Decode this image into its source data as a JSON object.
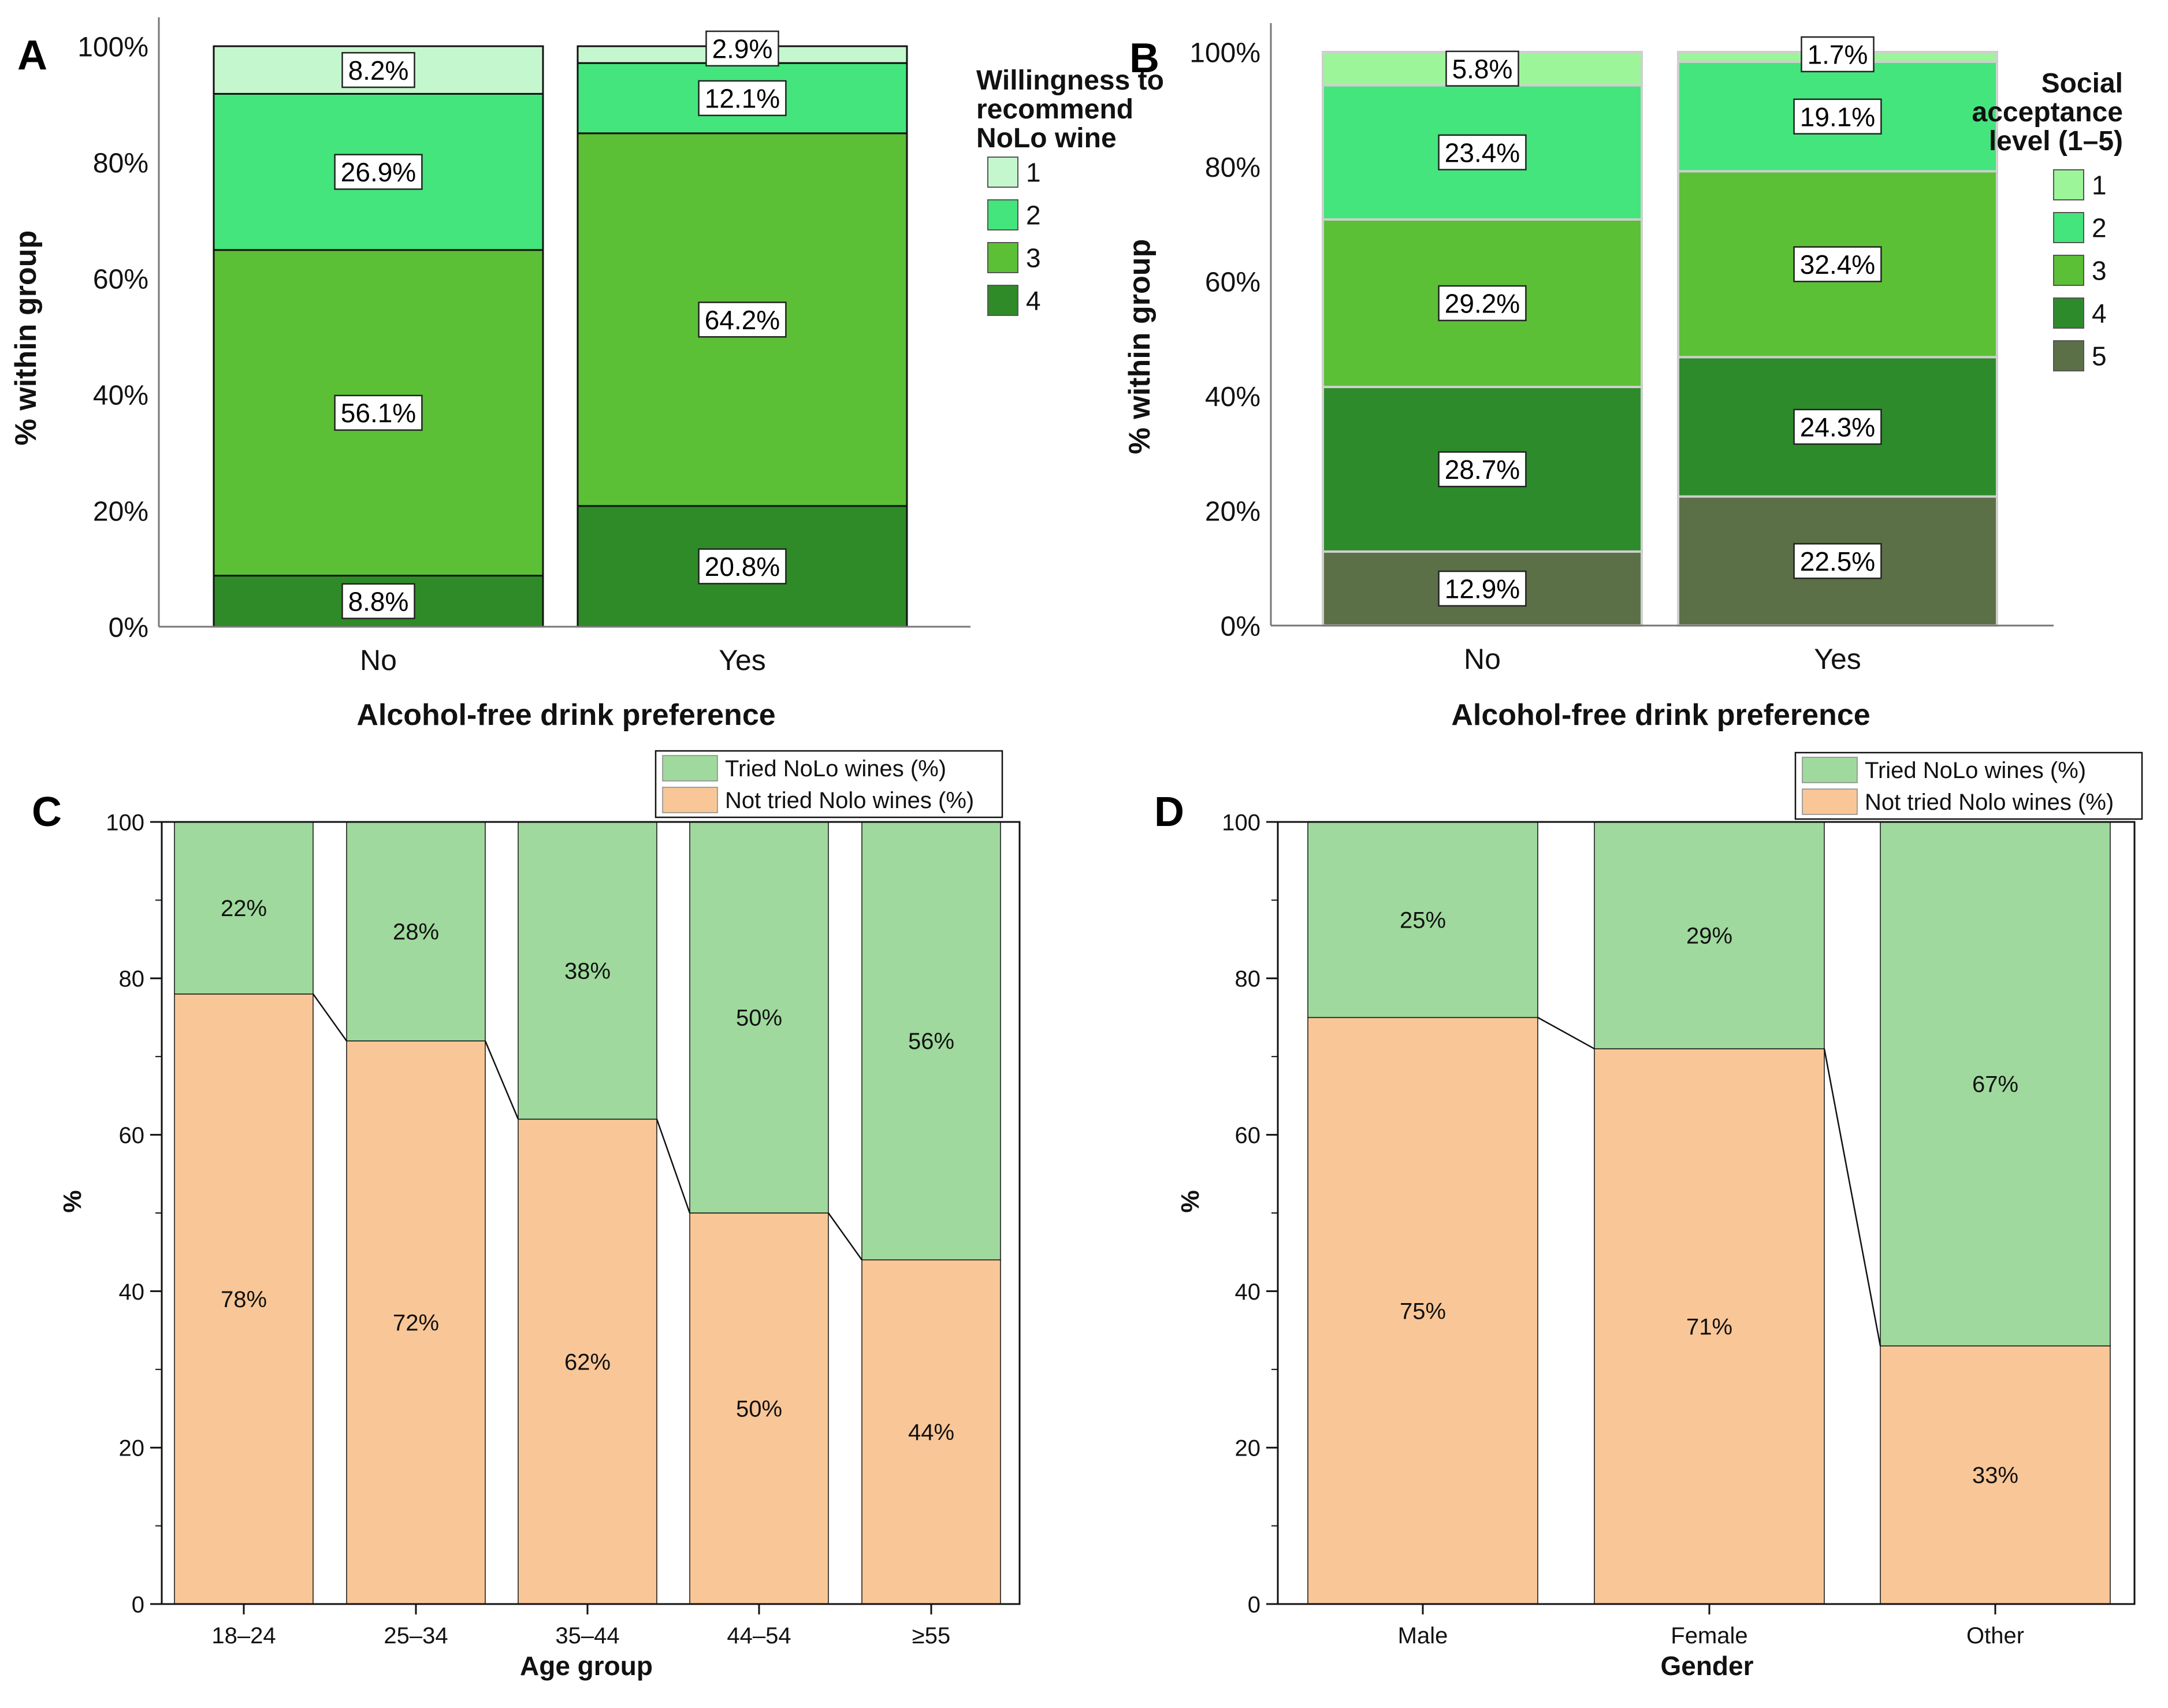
{
  "chart_data": [
    {
      "panel": "A",
      "type": "bar",
      "stacked": true,
      "categories": [
        "No",
        "Yes"
      ],
      "ylabel": "% within group",
      "xlabel": "Alcohol-free drink preference",
      "ylim": [
        0,
        100
      ],
      "yticks": [
        "0%",
        "20%",
        "40%",
        "60%",
        "80%",
        "100%"
      ],
      "legend_title": [
        "Willingness to",
        "recommend",
        "NoLo wine"
      ],
      "legend_position": "right",
      "series": [
        {
          "name": "4",
          "color": "#2e8b27",
          "values": [
            8.8,
            20.8
          ],
          "labels": [
            "8.8%",
            "20.8%"
          ]
        },
        {
          "name": "3",
          "color": "#5cc036",
          "values": [
            56.1,
            64.2
          ],
          "labels": [
            "56.1%",
            "64.2%"
          ]
        },
        {
          "name": "2",
          "color": "#44e57c",
          "values": [
            26.9,
            12.1
          ],
          "labels": [
            "26.9%",
            "12.1%"
          ]
        },
        {
          "name": "1",
          "color": "#c5f7cf",
          "values": [
            8.2,
            2.9
          ],
          "labels": [
            "8.2%",
            "2.9%"
          ]
        }
      ]
    },
    {
      "panel": "B",
      "type": "bar",
      "stacked": true,
      "categories": [
        "No",
        "Yes"
      ],
      "ylabel": "% within group",
      "xlabel": "Alcohol-free drink preference",
      "ylim": [
        0,
        100
      ],
      "yticks": [
        "0%",
        "20%",
        "40%",
        "60%",
        "80%",
        "100%"
      ],
      "legend_title": [
        "Social",
        "acceptance",
        "level (1–5)"
      ],
      "legend_position": "right",
      "series": [
        {
          "name": "5",
          "color": "#5c7047",
          "values": [
            12.9,
            22.5
          ],
          "labels": [
            "12.9%",
            "22.5%"
          ]
        },
        {
          "name": "4",
          "color": "#2e8b2c",
          "values": [
            28.7,
            24.3
          ],
          "labels": [
            "28.7%",
            "24.3%"
          ]
        },
        {
          "name": "3",
          "color": "#5cc036",
          "values": [
            29.2,
            32.4
          ],
          "labels": [
            "29.2%",
            "32.4%"
          ]
        },
        {
          "name": "2",
          "color": "#44e57c",
          "values": [
            23.4,
            19.1
          ],
          "labels": [
            "23.4%",
            "19.1%"
          ]
        },
        {
          "name": "1",
          "color": "#9df59a",
          "values": [
            5.8,
            1.7
          ],
          "labels": [
            "5.8%",
            "1.7%"
          ]
        }
      ]
    },
    {
      "panel": "C",
      "type": "bar",
      "stacked": true,
      "categories": [
        "18–24",
        "25–34",
        "35–44",
        "44–54",
        "≥55"
      ],
      "ylabel": "%",
      "xlabel": "Age group",
      "ylim": [
        0,
        100
      ],
      "yticks": [
        "0",
        "20",
        "40",
        "60",
        "80",
        "100"
      ],
      "legend_position": "top-right",
      "connect_lines": true,
      "series": [
        {
          "name": "Not tried Nolo wines (%)",
          "color": "#f9c697",
          "values": [
            78,
            72,
            62,
            50,
            44
          ],
          "labels": [
            "78%",
            "72%",
            "62%",
            "50%",
            "44%"
          ]
        },
        {
          "name": "Tried NoLo wines (%)",
          "color": "#9fd99d",
          "values": [
            22,
            28,
            38,
            50,
            56
          ],
          "labels": [
            "22%",
            "28%",
            "38%",
            "50%",
            "56%"
          ]
        }
      ]
    },
    {
      "panel": "D",
      "type": "bar",
      "stacked": true,
      "categories": [
        "Male",
        "Female",
        "Other"
      ],
      "ylabel": "%",
      "xlabel": "Gender",
      "ylim": [
        0,
        100
      ],
      "yticks": [
        "0",
        "20",
        "40",
        "60",
        "80",
        "100"
      ],
      "legend_position": "top-right",
      "connect_lines": true,
      "series": [
        {
          "name": "Not tried Nolo wines (%)",
          "color": "#f9c697",
          "values": [
            75,
            71,
            33
          ],
          "labels": [
            "75%",
            "71%",
            "33%"
          ]
        },
        {
          "name": "Tried NoLo wines (%)",
          "color": "#9fd99d",
          "values": [
            25,
            29,
            67
          ],
          "labels": [
            "25%",
            "29%",
            "67%"
          ]
        }
      ]
    }
  ]
}
